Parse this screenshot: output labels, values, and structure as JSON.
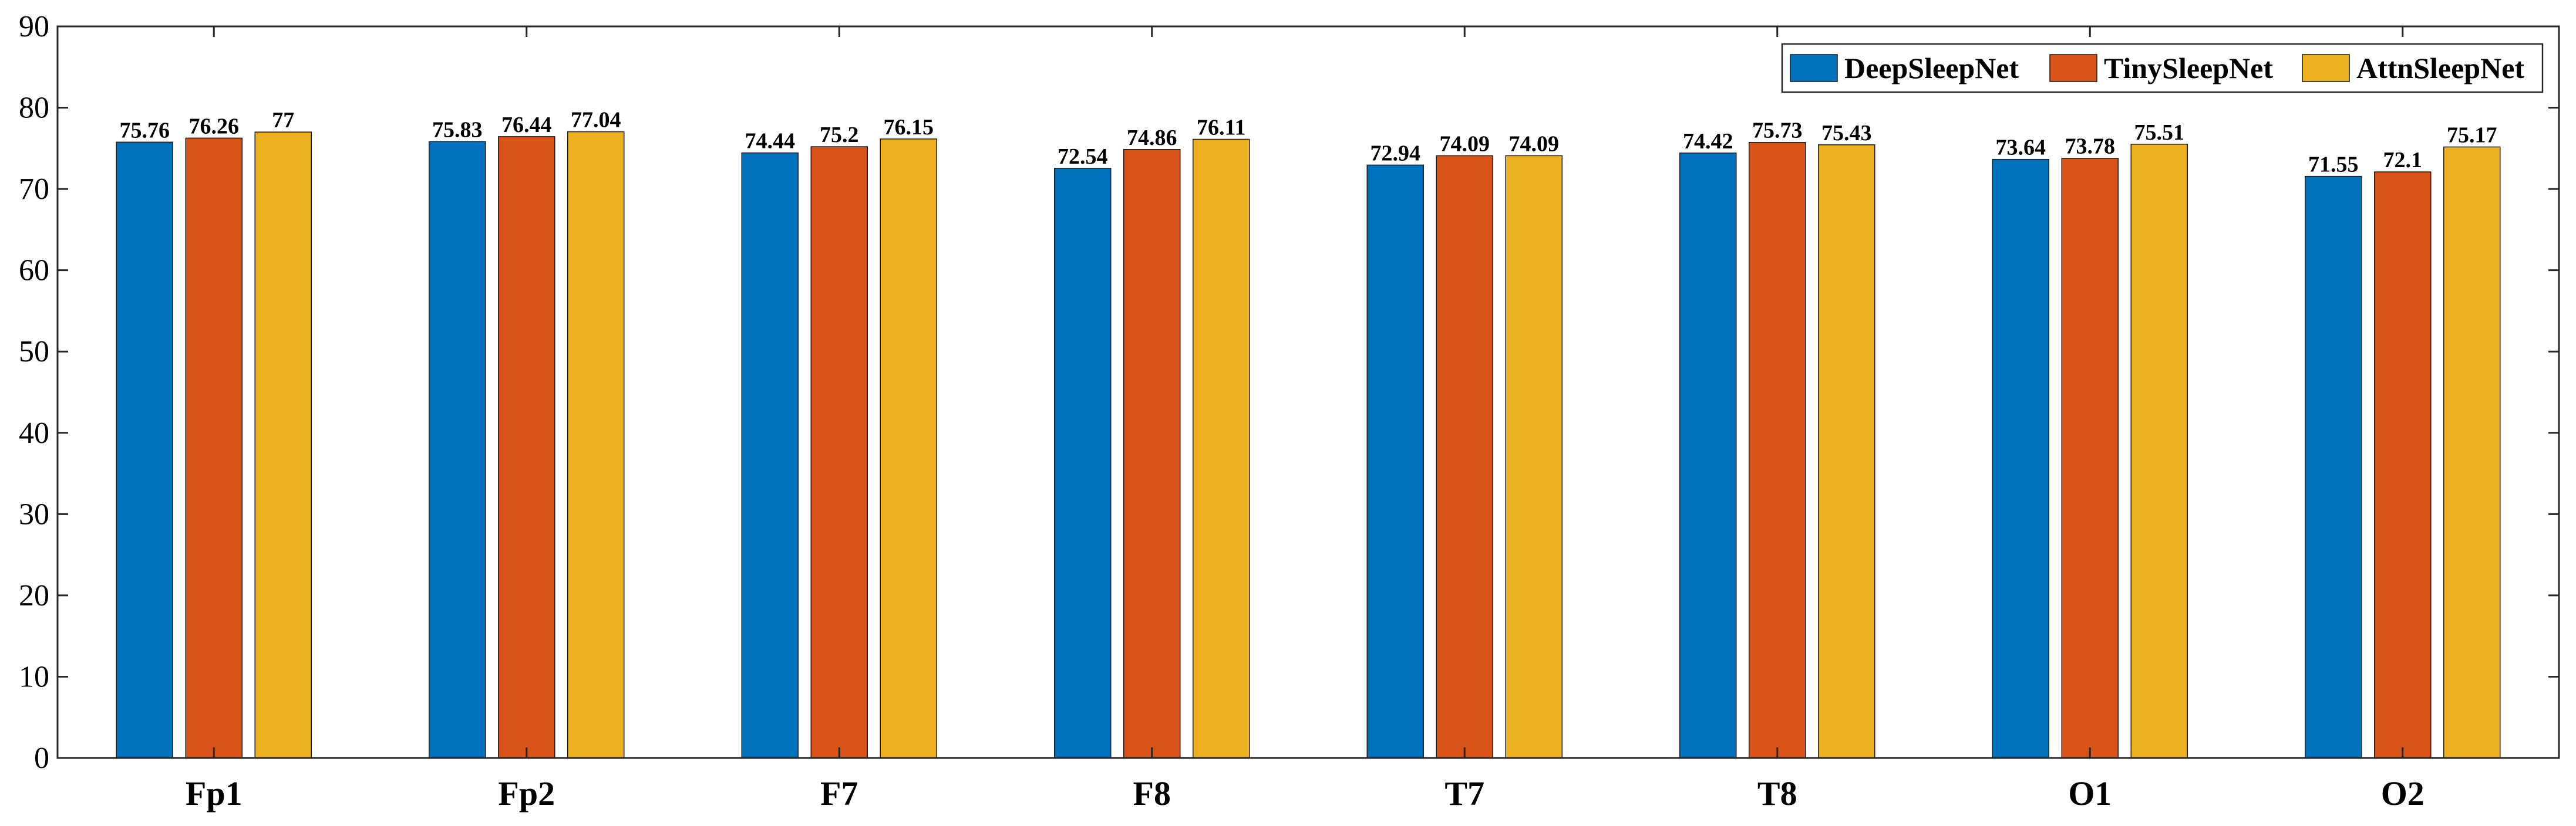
{
  "chart_data": {
    "type": "bar",
    "title": "",
    "xlabel": "",
    "ylabel": "",
    "ylim": [
      0,
      90
    ],
    "yticks": [
      0,
      10,
      20,
      30,
      40,
      50,
      60,
      70,
      80,
      90
    ],
    "grid": false,
    "legend_position": "top-right",
    "categories": [
      "Fp1",
      "Fp2",
      "F7",
      "F8",
      "T7",
      "T8",
      "O1",
      "O2"
    ],
    "series": [
      {
        "name": "DeepSleepNet",
        "color": "#0072BD",
        "values": [
          75.76,
          75.83,
          74.44,
          72.54,
          72.94,
          74.42,
          73.64,
          71.55
        ]
      },
      {
        "name": "TinySleepNet",
        "color": "#D95319",
        "values": [
          76.26,
          76.44,
          75.2,
          74.86,
          74.09,
          75.73,
          73.78,
          72.1
        ]
      },
      {
        "name": "AttnSleepNet",
        "color": "#EDB120",
        "values": [
          77,
          77.04,
          76.15,
          76.11,
          74.09,
          75.43,
          75.51,
          75.17
        ]
      }
    ],
    "data_labels": [
      [
        "75.76",
        "75.83",
        "74.44",
        "72.54",
        "72.94",
        "74.42",
        "73.64",
        "71.55"
      ],
      [
        "76.26",
        "76.44",
        "75.2",
        "74.86",
        "74.09",
        "75.73",
        "73.78",
        "72.1"
      ],
      [
        "77",
        "77.04",
        "76.15",
        "76.11",
        "74.09",
        "75.43",
        "75.51",
        "75.17"
      ]
    ]
  }
}
